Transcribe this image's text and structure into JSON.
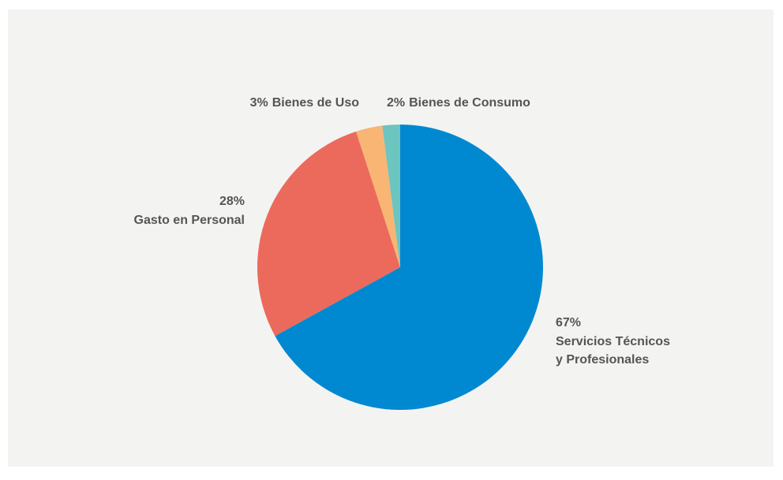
{
  "chart_data": {
    "type": "pie",
    "categories": [
      [
        "Servicios Técnicos",
        "y Profesionales"
      ],
      [
        "Gasto en Personal"
      ],
      [
        "Bienes de Uso"
      ],
      [
        "Bienes de Consumo"
      ]
    ],
    "values": [
      67,
      28,
      3,
      2
    ],
    "value_labels": [
      "67%",
      "28%",
      "3%",
      "2%"
    ],
    "colors": [
      "#0089d1",
      "#ec6a5c",
      "#f9b574",
      "#6cc5bf"
    ]
  }
}
